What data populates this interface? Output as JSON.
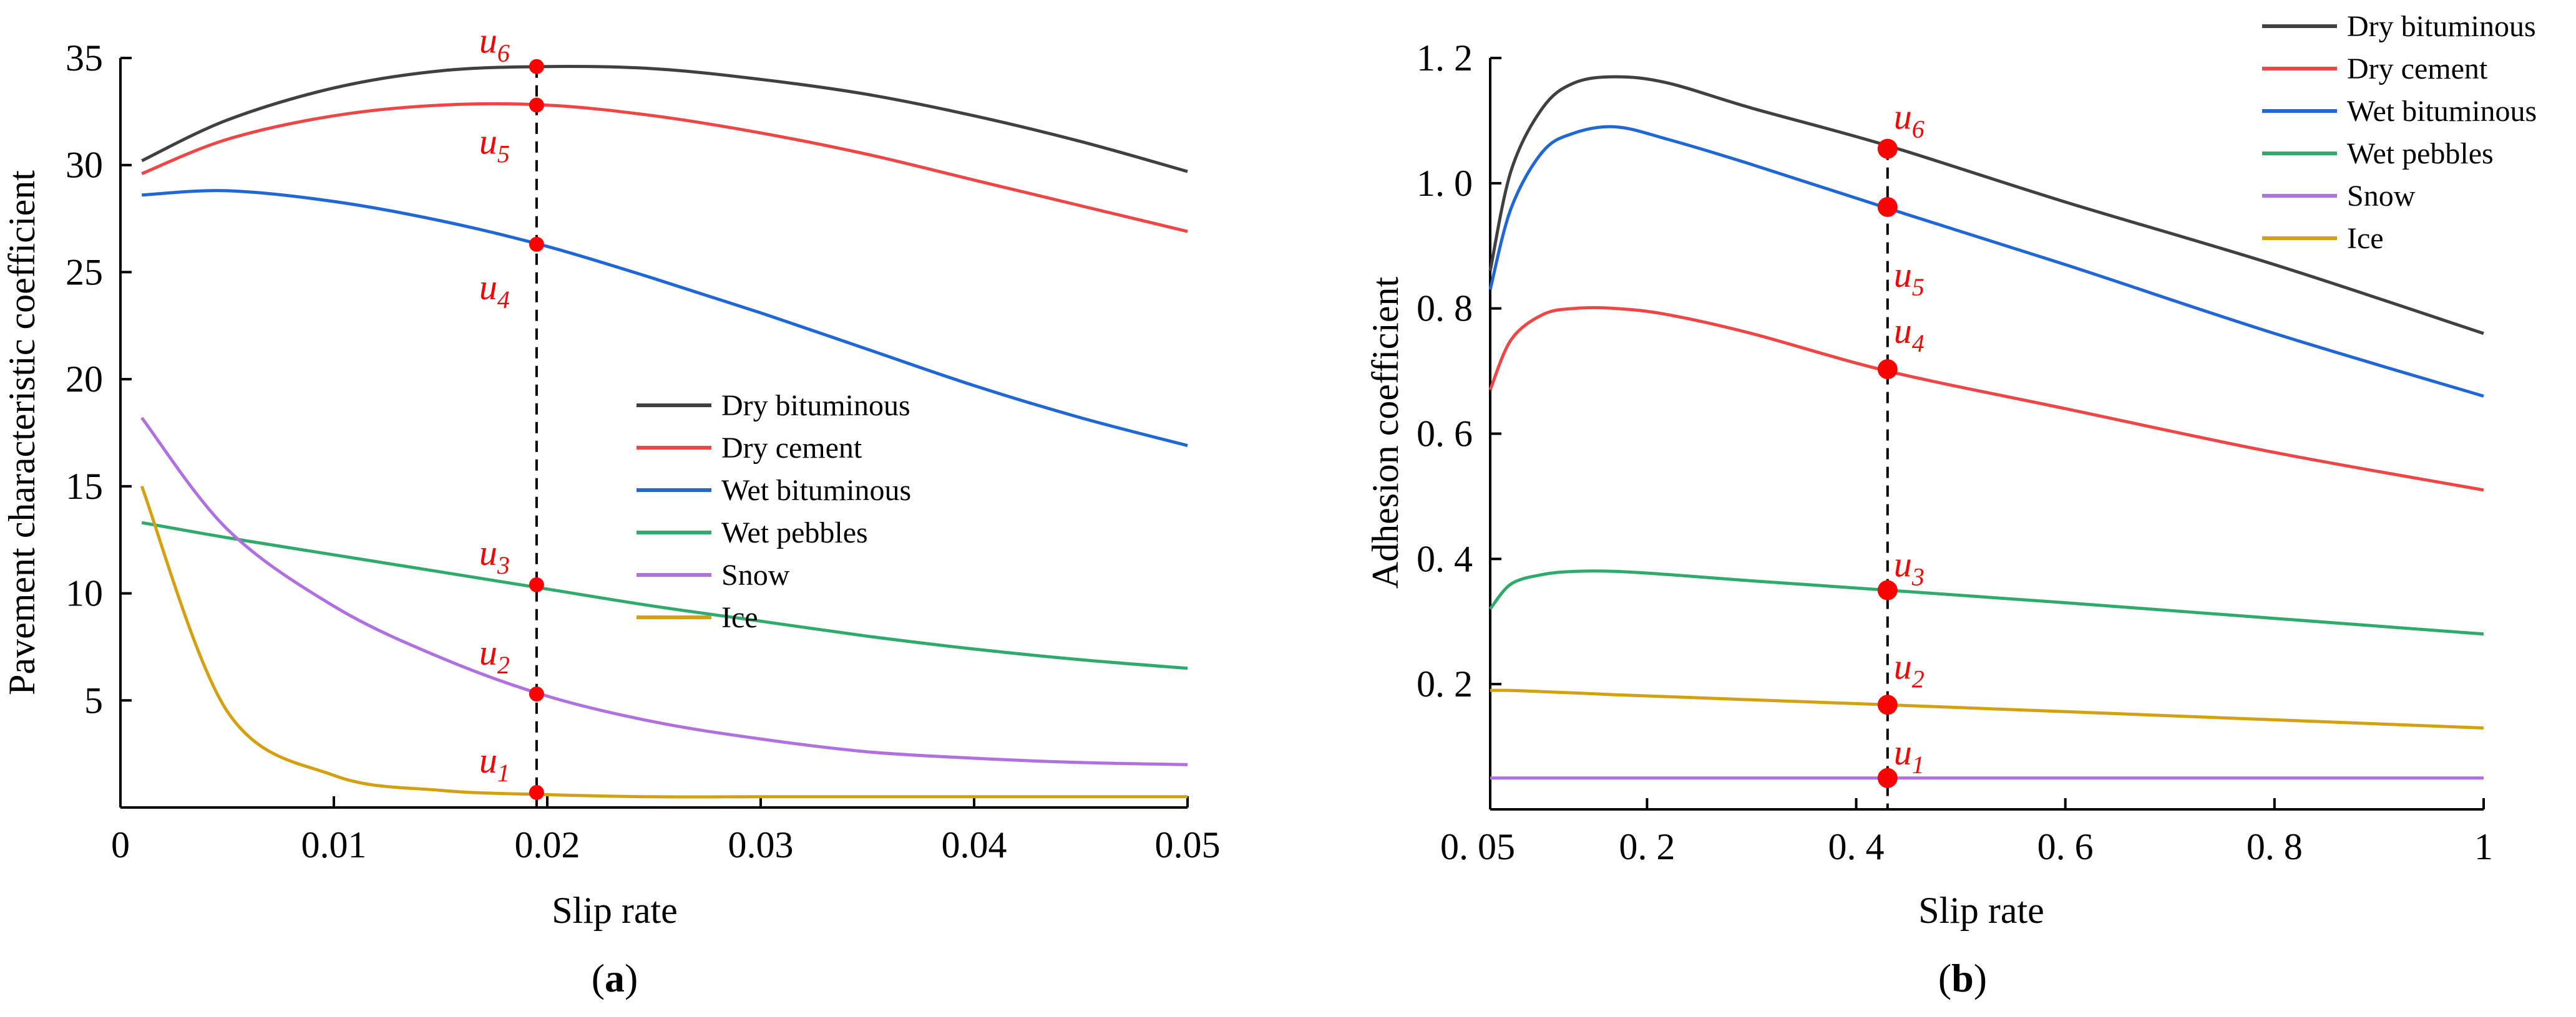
{
  "chart_data": [
    {
      "panel": "a",
      "type": "line",
      "xlabel": "Slip rate",
      "ylabel": "Pavement characteristic coefficient",
      "xlim": [
        0,
        0.05
      ],
      "ylim": [
        0,
        35
      ],
      "x_ticks": [
        {
          "value": 0,
          "label": "0"
        },
        {
          "value": 0.01,
          "label": "0.01"
        },
        {
          "value": 0.02,
          "label": "0.02"
        },
        {
          "value": 0.03,
          "label": "0.03"
        },
        {
          "value": 0.04,
          "label": "0.04"
        },
        {
          "value": 0.05,
          "label": "0.05"
        }
      ],
      "y_ticks": [
        {
          "value": 5,
          "label": "5"
        },
        {
          "value": 10,
          "label": "10"
        },
        {
          "value": 15,
          "label": "15"
        },
        {
          "value": 20,
          "label": "20"
        },
        {
          "value": 25,
          "label": "25"
        },
        {
          "value": 30,
          "label": "30"
        },
        {
          "value": 35,
          "label": "35"
        }
      ],
      "legend_position": "center-right",
      "x": [
        0.001,
        0.005,
        0.01,
        0.015,
        0.02,
        0.025,
        0.03,
        0.035,
        0.04,
        0.045,
        0.05
      ],
      "series": [
        {
          "name": "Dry bituminous",
          "color": "#404040",
          "values": [
            30.2,
            32.1,
            33.6,
            34.4,
            34.6,
            34.5,
            34.0,
            33.3,
            32.3,
            31.1,
            29.7
          ]
        },
        {
          "name": "Dry cement",
          "color": "#f04545",
          "values": [
            29.6,
            31.2,
            32.3,
            32.8,
            32.8,
            32.3,
            31.5,
            30.5,
            29.3,
            28.1,
            26.9
          ]
        },
        {
          "name": "Wet bituminous",
          "color": "#1f67d6",
          "values": [
            28.6,
            28.8,
            28.3,
            27.4,
            26.2,
            24.7,
            23.1,
            21.4,
            19.7,
            18.2,
            16.9
          ]
        },
        {
          "name": "Wet pebbles",
          "color": "#2eaa6a",
          "values": [
            13.3,
            12.6,
            11.8,
            11.0,
            10.2,
            9.4,
            8.7,
            8.0,
            7.4,
            6.9,
            6.5
          ]
        },
        {
          "name": "Snow",
          "color": "#b070e0",
          "values": [
            18.2,
            13.0,
            9.4,
            7.0,
            5.2,
            4.0,
            3.2,
            2.6,
            2.3,
            2.1,
            2.0
          ]
        },
        {
          "name": "Ice",
          "color": "#d4a010",
          "values": [
            15.0,
            4.5,
            1.5,
            0.8,
            0.6,
            0.5,
            0.5,
            0.5,
            0.5,
            0.5,
            0.5
          ]
        }
      ],
      "marker_x": 0.0195,
      "annotations": [
        {
          "base": "u",
          "sub": "6",
          "x": 0.0195,
          "y": 34.6
        },
        {
          "base": "u",
          "sub": "5",
          "x": 0.0195,
          "y": 32.8
        },
        {
          "base": "u",
          "sub": "4",
          "x": 0.0195,
          "y": 26.3
        },
        {
          "base": "u",
          "sub": "3",
          "x": 0.0195,
          "y": 10.4
        },
        {
          "base": "u",
          "sub": "2",
          "x": 0.0195,
          "y": 5.3
        },
        {
          "base": "u",
          "sub": "1",
          "x": 0.0195,
          "y": 0.7
        }
      ]
    },
    {
      "panel": "b",
      "type": "line",
      "xlabel": "Slip rate",
      "ylabel": "Adhesion coefficient",
      "xlim": [
        0.05,
        1
      ],
      "ylim": [
        0,
        1.2
      ],
      "x_ticks": [
        {
          "value": 0.05,
          "label": "0. 05"
        },
        {
          "value": 0.2,
          "label": "0. 2"
        },
        {
          "value": 0.4,
          "label": "0. 4"
        },
        {
          "value": 0.6,
          "label": "0. 6"
        },
        {
          "value": 0.8,
          "label": "0. 8"
        },
        {
          "value": 1,
          "label": "1"
        }
      ],
      "y_ticks": [
        {
          "value": 0.2,
          "label": "0. 2"
        },
        {
          "value": 0.4,
          "label": "0. 4"
        },
        {
          "value": 0.6,
          "label": "0. 6"
        },
        {
          "value": 0.8,
          "label": "0. 8"
        },
        {
          "value": 1.0,
          "label": "1. 0"
        },
        {
          "value": 1.2,
          "label": "1. 2"
        }
      ],
      "legend_position": "top-right",
      "x": [
        0.05,
        0.07,
        0.1,
        0.13,
        0.17,
        0.22,
        0.3,
        0.43,
        0.6,
        0.8,
        1.0
      ],
      "series": [
        {
          "name": "Dry bituminous",
          "color": "#404040",
          "values": [
            0.86,
            1.02,
            1.12,
            1.16,
            1.17,
            1.16,
            1.12,
            1.06,
            0.97,
            0.87,
            0.76
          ]
        },
        {
          "name": "Dry cement",
          "color": "#f04545",
          "values": [
            0.67,
            0.75,
            0.79,
            0.8,
            0.8,
            0.79,
            0.76,
            0.7,
            0.64,
            0.57,
            0.51
          ]
        },
        {
          "name": "Wet bituminous",
          "color": "#1f67d6",
          "values": [
            0.83,
            0.96,
            1.05,
            1.08,
            1.09,
            1.07,
            1.03,
            0.96,
            0.87,
            0.76,
            0.66
          ]
        },
        {
          "name": "Wet pebbles",
          "color": "#2eaa6a",
          "values": [
            0.32,
            0.36,
            0.375,
            0.38,
            0.38,
            0.375,
            0.365,
            0.35,
            0.33,
            0.305,
            0.28
          ]
        },
        {
          "name": "Snow",
          "color": "#b070e0",
          "values": [
            0.05,
            0.05,
            0.05,
            0.05,
            0.05,
            0.05,
            0.05,
            0.05,
            0.05,
            0.05,
            0.05
          ]
        },
        {
          "name": "Ice",
          "color": "#d4a010",
          "values": [
            0.19,
            0.19,
            0.188,
            0.186,
            0.183,
            0.18,
            0.175,
            0.167,
            0.156,
            0.143,
            0.13
          ]
        }
      ],
      "marker_x": 0.43,
      "annotations": [
        {
          "base": "u",
          "sub": "6",
          "x": 0.43,
          "y": 1.055
        },
        {
          "base": "u",
          "sub": "5",
          "x": 0.43,
          "y": 0.962
        },
        {
          "base": "u",
          "sub": "4",
          "x": 0.43,
          "y": 0.703
        },
        {
          "base": "u",
          "sub": "3",
          "x": 0.43,
          "y": 0.35
        },
        {
          "base": "u",
          "sub": "2",
          "x": 0.43,
          "y": 0.167
        },
        {
          "base": "u",
          "sub": "1",
          "x": 0.43,
          "y": 0.05
        }
      ]
    }
  ],
  "panel_labels": [
    {
      "open": "(",
      "letter": "a",
      "close": ")"
    },
    {
      "open": "(",
      "letter": "b",
      "close": ")"
    }
  ],
  "colors": {
    "marker": "#ff0000",
    "annotation": "#ff0000",
    "axis": "#000000"
  }
}
